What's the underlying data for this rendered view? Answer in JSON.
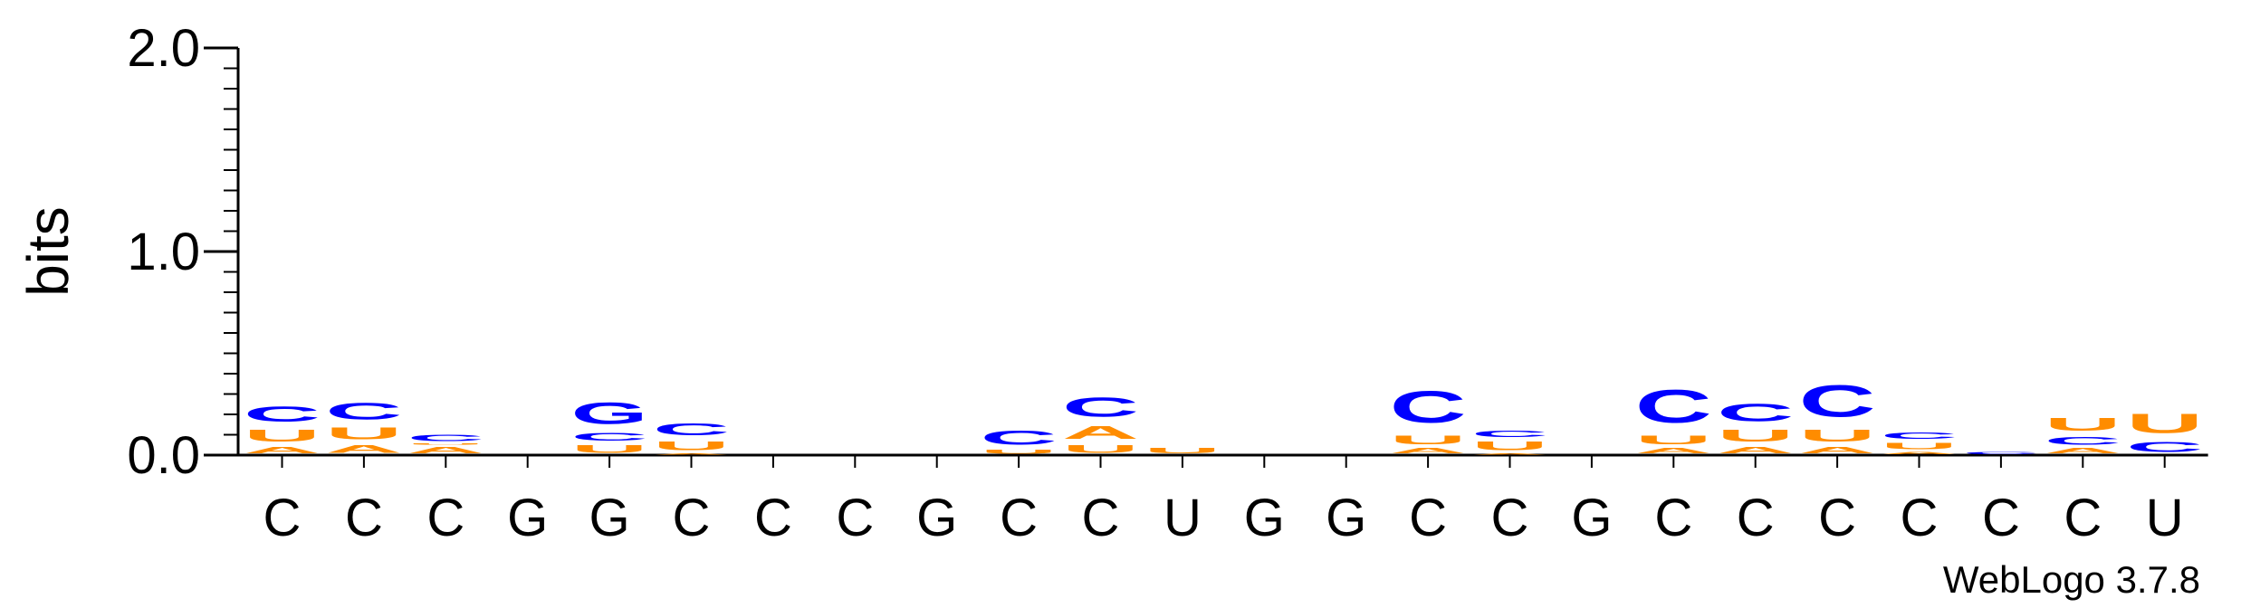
{
  "chart_data": {
    "type": "sequence-logo",
    "ylabel": "bits",
    "ylim": [
      0,
      2.0
    ],
    "yticks": [
      "0.0",
      "1.0",
      "2.0"
    ],
    "credit": "WebLogo 3.7.8",
    "colors": {
      "A": "#ff8c00",
      "U": "#ff8c00",
      "G": "#0000ff",
      "C": "#0000ff"
    },
    "positions": [
      {
        "label": "C",
        "stack": [
          [
            "A",
            0.05
          ],
          [
            "U",
            0.09
          ],
          [
            "C",
            0.12
          ]
        ]
      },
      {
        "label": "C",
        "stack": [
          [
            "A",
            0.06
          ],
          [
            "U",
            0.09
          ],
          [
            "C",
            0.13
          ]
        ]
      },
      {
        "label": "C",
        "stack": [
          [
            "A",
            0.05
          ],
          [
            "U",
            0.01
          ],
          [
            "C",
            0.05
          ]
        ]
      },
      {
        "label": "G",
        "stack": []
      },
      {
        "label": "G",
        "stack": [
          [
            "U",
            0.06
          ],
          [
            "C",
            0.06
          ],
          [
            "G",
            0.17
          ]
        ]
      },
      {
        "label": "C",
        "stack": [
          [
            "A",
            0.01
          ],
          [
            "U",
            0.07
          ],
          [
            "C",
            0.09
          ]
        ]
      },
      {
        "label": "C",
        "stack": []
      },
      {
        "label": "C",
        "stack": []
      },
      {
        "label": "G",
        "stack": []
      },
      {
        "label": "C",
        "stack": [
          [
            "U",
            0.03
          ],
          [
            "C",
            0.11
          ]
        ]
      },
      {
        "label": "C",
        "stack": [
          [
            "U",
            0.06
          ],
          [
            "A",
            0.1
          ],
          [
            "C",
            0.15
          ]
        ]
      },
      {
        "label": "U",
        "stack": [
          [
            "U",
            0.04
          ]
        ]
      },
      {
        "label": "G",
        "stack": []
      },
      {
        "label": "G",
        "stack": []
      },
      {
        "label": "C",
        "stack": [
          [
            "A",
            0.04
          ],
          [
            "U",
            0.07
          ],
          [
            "C",
            0.25
          ]
        ]
      },
      {
        "label": "C",
        "stack": [
          [
            "A",
            0.01
          ],
          [
            "U",
            0.07
          ],
          [
            "C",
            0.05
          ]
        ]
      },
      {
        "label": "G",
        "stack": []
      },
      {
        "label": "C",
        "stack": [
          [
            "A",
            0.04
          ],
          [
            "U",
            0.07
          ],
          [
            "C",
            0.26
          ]
        ]
      },
      {
        "label": "C",
        "stack": [
          [
            "A",
            0.05
          ],
          [
            "U",
            0.09
          ],
          [
            "C",
            0.14
          ]
        ]
      },
      {
        "label": "C",
        "stack": [
          [
            "A",
            0.05
          ],
          [
            "U",
            0.09
          ],
          [
            "C",
            0.25
          ]
        ]
      },
      {
        "label": "C",
        "stack": [
          [
            "A",
            0.02
          ],
          [
            "U",
            0.05
          ],
          [
            "C",
            0.05
          ]
        ]
      },
      {
        "label": "C",
        "stack": [
          [
            "C",
            0.02
          ]
        ]
      },
      {
        "label": "C",
        "stack": [
          [
            "A",
            0.04
          ],
          [
            "C",
            0.06
          ],
          [
            "U",
            0.1
          ]
        ]
      },
      {
        "label": "U",
        "stack": [
          [
            "C",
            0.08
          ],
          [
            "U",
            0.15
          ]
        ]
      }
    ]
  }
}
